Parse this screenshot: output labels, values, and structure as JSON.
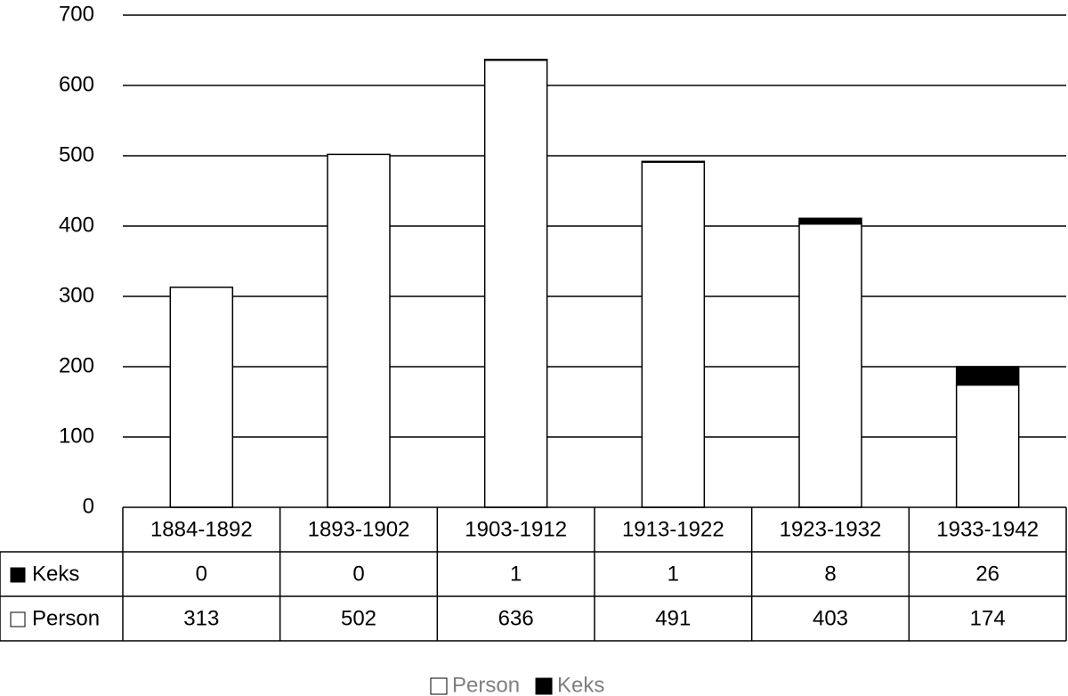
{
  "chart_data": {
    "type": "bar",
    "stacked": true,
    "categories": [
      "1884-1892",
      "1893-1902",
      "1903-1912",
      "1913-1922",
      "1923-1932",
      "1933-1942"
    ],
    "series": [
      {
        "name": "Person",
        "color": "#ffffff",
        "values": [
          313,
          502,
          636,
          491,
          403,
          174
        ]
      },
      {
        "name": "Keks",
        "color": "#000000",
        "values": [
          0,
          0,
          1,
          1,
          8,
          26
        ]
      }
    ],
    "ylim": [
      0,
      700
    ],
    "yticks": [
      0,
      100,
      200,
      300,
      400,
      500,
      600,
      700
    ],
    "grid": true,
    "data_table": true,
    "legend": "bottom"
  }
}
